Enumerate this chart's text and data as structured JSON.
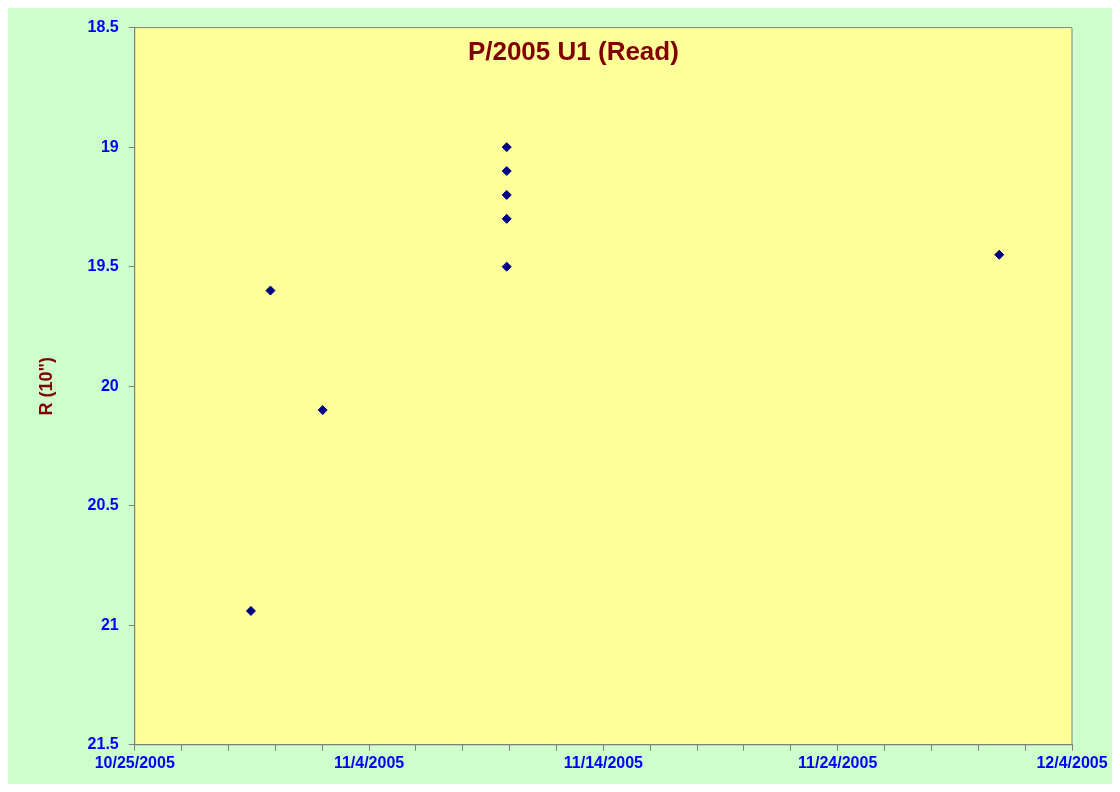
{
  "chart_data": {
    "type": "scatter",
    "title": "P/2005 U1 (Read)",
    "ylabel": "R (10\")",
    "x": [
      "2005-10-29T23:00",
      "2005-10-30T19:00",
      "2005-11-02T00:30",
      "2005-11-09T21:00",
      "2005-11-09T21:00",
      "2005-11-09T21:00",
      "2005-11-09T21:00",
      "2005-11-09T21:00",
      "2005-11-30T21:30"
    ],
    "series": [
      {
        "color": "#000080",
        "values": [
          20.94,
          19.6,
          20.1,
          19.0,
          19.1,
          19.2,
          19.3,
          19.5,
          19.45
        ]
      }
    ],
    "marker": "diamond",
    "ylim": [
      21.5,
      18.5
    ],
    "yticks": [
      18.5,
      19,
      19.5,
      20,
      20.5,
      21,
      21.5
    ],
    "xlim": [
      "2005-10-25",
      "2005-12-04"
    ],
    "xticks": [
      {
        "value": "2005-10-25",
        "label": "10/25/2005"
      },
      {
        "value": "2005-10-27",
        "label": null
      },
      {
        "value": "2005-10-29",
        "label": null
      },
      {
        "value": "2005-10-31",
        "label": null
      },
      {
        "value": "2005-11-02",
        "label": null
      },
      {
        "value": "2005-11-04",
        "label": "11/4/2005"
      },
      {
        "value": "2005-11-06",
        "label": null
      },
      {
        "value": "2005-11-08",
        "label": null
      },
      {
        "value": "2005-11-10",
        "label": null
      },
      {
        "value": "2005-11-12",
        "label": null
      },
      {
        "value": "2005-11-14",
        "label": "11/14/2005"
      },
      {
        "value": "2005-11-16",
        "label": null
      },
      {
        "value": "2005-11-18",
        "label": null
      },
      {
        "value": "2005-11-20",
        "label": null
      },
      {
        "value": "2005-11-22",
        "label": null
      },
      {
        "value": "2005-11-24",
        "label": "11/24/2005"
      },
      {
        "value": "2005-11-26",
        "label": null
      },
      {
        "value": "2005-11-28",
        "label": null
      },
      {
        "value": "2005-11-30",
        "label": null
      },
      {
        "value": "2005-12-02",
        "label": null
      },
      {
        "value": "2005-12-04",
        "label": "12/4/2005"
      }
    ]
  }
}
